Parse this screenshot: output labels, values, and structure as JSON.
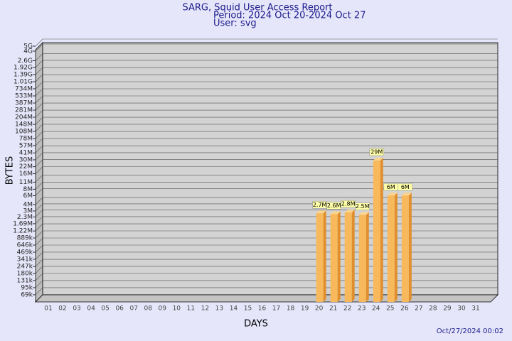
{
  "chart_data": {
    "type": "bar",
    "title": "SARG, Squid User Access Report",
    "subtitle": "Period: 2024 Oct 20-2024 Oct 27",
    "user": "User: svg",
    "x_label": "DAYS",
    "y_label": "BYTES",
    "footer": "Oct/27/2024 00:02",
    "categories": [
      "01",
      "02",
      "03",
      "04",
      "05",
      "06",
      "07",
      "08",
      "09",
      "10",
      "11",
      "12",
      "13",
      "14",
      "15",
      "16",
      "17",
      "18",
      "19",
      "20",
      "21",
      "22",
      "23",
      "24",
      "25",
      "26",
      "27",
      "28",
      "29",
      "30",
      "31"
    ],
    "values": [
      null,
      null,
      null,
      null,
      null,
      null,
      null,
      null,
      null,
      null,
      null,
      null,
      null,
      null,
      null,
      null,
      null,
      null,
      null,
      2700000,
      2600000,
      2800000,
      2500000,
      29000000,
      6000000,
      6000000,
      null,
      null,
      null,
      null,
      null
    ],
    "value_labels": [
      null,
      null,
      null,
      null,
      null,
      null,
      null,
      null,
      null,
      null,
      null,
      null,
      null,
      null,
      null,
      null,
      null,
      null,
      null,
      "2.7M",
      "2.6M",
      "2.8M",
      "2.5M",
      "29M",
      "6M",
      "6M",
      null,
      null,
      null,
      null,
      null
    ],
    "color": "#f7b95c",
    "log_scale": true,
    "grid": true,
    "ylim": [
      50000,
      5000000000
    ],
    "yticks": [
      {
        "value": 69000,
        "label": "69k"
      },
      {
        "value": 95000,
        "label": "95k"
      },
      {
        "value": 131000,
        "label": "131k"
      },
      {
        "value": 180000,
        "label": "180k"
      },
      {
        "value": 247000,
        "label": "247k"
      },
      {
        "value": 341000,
        "label": "341k"
      },
      {
        "value": 469000,
        "label": "469k"
      },
      {
        "value": 646000,
        "label": "646k"
      },
      {
        "value": 889000,
        "label": "889k"
      },
      {
        "value": 1220000,
        "label": "1.22M"
      },
      {
        "value": 1690000,
        "label": "1.69M"
      },
      {
        "value": 2300000,
        "label": "2.3M"
      },
      {
        "value": 3000000,
        "label": "3M"
      },
      {
        "value": 4000000,
        "label": "4M"
      },
      {
        "value": 6000000,
        "label": "6M"
      },
      {
        "value": 8000000,
        "label": "8M"
      },
      {
        "value": 11000000,
        "label": "11M"
      },
      {
        "value": 16000000,
        "label": "16M"
      },
      {
        "value": 22000000,
        "label": "22M"
      },
      {
        "value": 30000000,
        "label": "30M"
      },
      {
        "value": 41000000,
        "label": "41M"
      },
      {
        "value": 57000000,
        "label": "57M"
      },
      {
        "value": 78000000,
        "label": "78M"
      },
      {
        "value": 108000000,
        "label": "108M"
      },
      {
        "value": 148000000,
        "label": "148M"
      },
      {
        "value": 204000000,
        "label": "204M"
      },
      {
        "value": 281000000,
        "label": "281M"
      },
      {
        "value": 387000000,
        "label": "387M"
      },
      {
        "value": 533000000,
        "label": "533M"
      },
      {
        "value": 734000000,
        "label": "734M"
      },
      {
        "value": 1010000000,
        "label": "1.01G"
      },
      {
        "value": 1390000000,
        "label": "1.39G"
      },
      {
        "value": 1920000000,
        "label": "1.92G"
      },
      {
        "value": 2600000000,
        "label": "2.6G"
      },
      {
        "value": 4000000000,
        "label": "4G"
      },
      {
        "value": 5000000000,
        "label": "5G"
      }
    ]
  }
}
